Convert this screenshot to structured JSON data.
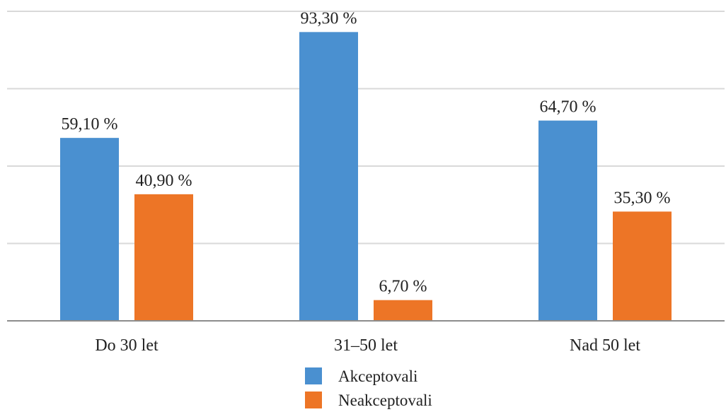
{
  "chart_data": {
    "type": "bar",
    "categories": [
      "Do 30 let",
      "31–50 let",
      "Nad 50 let"
    ],
    "series": [
      {
        "name": "Akceptovali",
        "color": "#4a90d0",
        "values": [
          59.1,
          93.3,
          64.7
        ],
        "labels": [
          "59,10 %",
          "93,30 %",
          "64,70 %"
        ]
      },
      {
        "name": "Neakceptovali",
        "color": "#ed7526",
        "values": [
          40.9,
          6.7,
          35.3
        ],
        "labels": [
          "40,90 %",
          "6,70 %",
          "35,30 %"
        ]
      }
    ],
    "ylim": [
      0,
      100
    ],
    "gridlines": [
      0,
      25,
      50,
      75,
      100
    ],
    "grid": true,
    "legend_position": "bottom",
    "colors": {
      "grid": "#d9d9d9",
      "axis": "#8c8c8c"
    }
  }
}
